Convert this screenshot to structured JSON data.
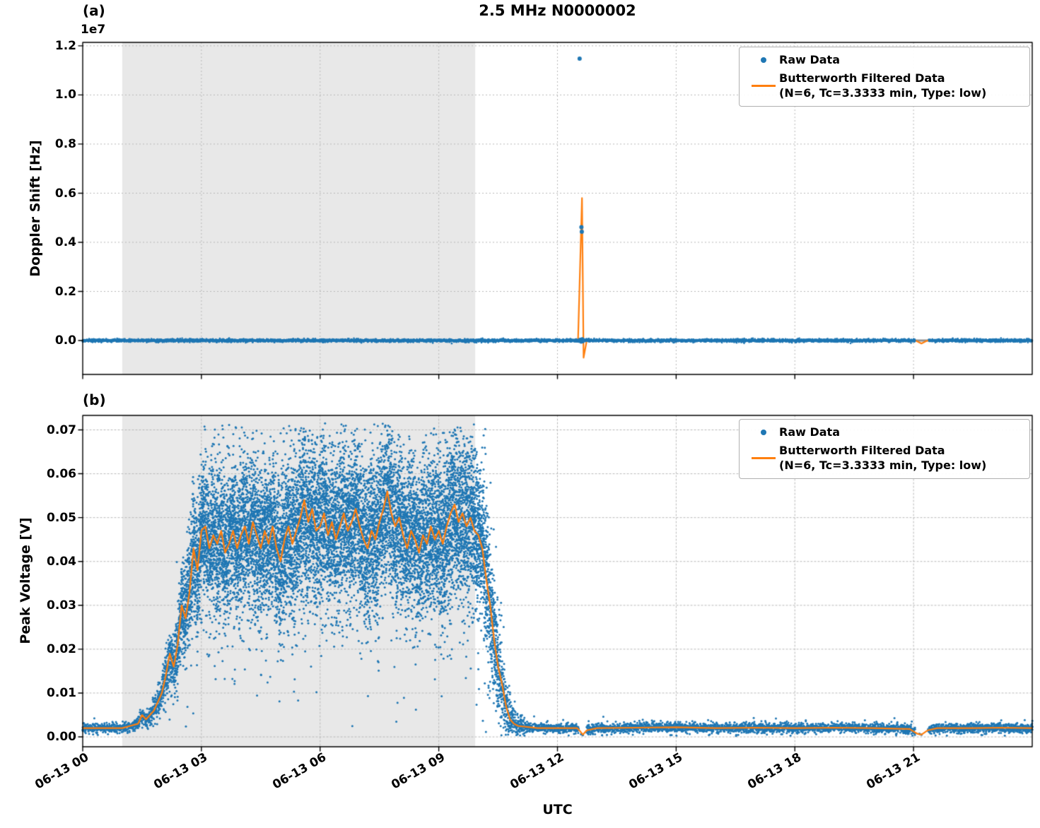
{
  "title": "2.5 MHz N0000002",
  "colors": {
    "raw": "#1f77b4",
    "filtered": "#ff7f0e",
    "shade": "#e8e8e8",
    "grid": "#b8b8b8"
  },
  "chart_data": [
    {
      "type": "scatter",
      "panel_label": "(a)",
      "title": "2.5 MHz N0000002",
      "ylabel": "Doppler Shift [Hz]",
      "offset_text": "1e7",
      "xlabel": "",
      "xlim_hours": [
        0,
        24
      ],
      "ylim": [
        -1380000,
        12140000
      ],
      "yticks": [
        0,
        2000000,
        4000000,
        6000000,
        8000000,
        10000000,
        12000000
      ],
      "ytick_labels": [
        "0.0",
        "0.2",
        "0.4",
        "0.6",
        "0.8",
        "1.0",
        "1.2"
      ],
      "xticks_hours": [
        0,
        3,
        6,
        9,
        12,
        15,
        18,
        21
      ],
      "shaded_hours": [
        1.0,
        9.92
      ],
      "grid": true,
      "legend_position": "upper right",
      "legend_lines": [
        "Raw Data",
        "Butterworth Filtered Data",
        "(N=6, Tc=3.3333 min, Type: low)"
      ],
      "zero_line": {
        "y": 0,
        "color": "#8f8f8f",
        "width": 3
      },
      "raw": {
        "style": "baseline",
        "baseline": 0,
        "jitter": 30000,
        "density": 5,
        "gaps_hours": [
          [
            21.04,
            21.38
          ]
        ],
        "outliers": [
          [
            12.56,
            11480000
          ],
          [
            12.605,
            4620000
          ],
          [
            12.615,
            4430000
          ],
          [
            12.575,
            30000
          ],
          [
            12.6,
            -40000
          ],
          [
            12.625,
            50000
          ],
          [
            12.64,
            0
          ]
        ]
      },
      "filtered": {
        "points": [
          [
            0,
            0
          ],
          [
            12.52,
            0
          ],
          [
            12.62,
            5800000
          ],
          [
            12.66,
            -700000
          ],
          [
            12.74,
            0
          ],
          [
            21.05,
            0
          ],
          [
            21.2,
            -120000
          ],
          [
            21.35,
            0
          ],
          [
            24,
            0
          ]
        ]
      }
    },
    {
      "type": "scatter",
      "panel_label": "(b)",
      "ylabel": "Peak Voltage [V]",
      "xlabel": "UTC",
      "xlim_hours": [
        0,
        24
      ],
      "ylim": [
        -0.00225,
        0.0733
      ],
      "yticks": [
        0,
        0.01,
        0.02,
        0.03,
        0.04,
        0.05,
        0.06,
        0.07
      ],
      "ytick_labels": [
        "0.00",
        "0.01",
        "0.02",
        "0.03",
        "0.04",
        "0.05",
        "0.06",
        "0.07"
      ],
      "xticks_hours": [
        0,
        3,
        6,
        9,
        12,
        15,
        18,
        21
      ],
      "xtick_labels": [
        "06-13 00",
        "06-13 03",
        "06-13 06",
        "06-13 09",
        "06-13 12",
        "06-13 15",
        "06-13 18",
        "06-13 21"
      ],
      "shaded_hours": [
        1.0,
        9.92
      ],
      "grid": true,
      "legend_position": "upper right",
      "legend_lines": [
        "Raw Data",
        "Butterworth Filtered Data",
        "(N=6, Tc=3.3333 min, Type: low)"
      ],
      "raw": {
        "style": "cloud",
        "density_profile": [
          [
            0,
            5
          ],
          [
            1.2,
            5
          ],
          [
            1.8,
            8
          ],
          [
            2.2,
            14
          ],
          [
            2.6,
            22
          ],
          [
            3.0,
            28
          ],
          [
            10.0,
            28
          ],
          [
            10.3,
            22
          ],
          [
            10.6,
            14
          ],
          [
            10.9,
            7
          ],
          [
            11.2,
            5
          ],
          [
            24,
            5
          ]
        ],
        "sigma_profile": [
          [
            0,
            0.00045
          ],
          [
            1.3,
            0.0005
          ],
          [
            1.7,
            0.0009
          ],
          [
            2.0,
            0.0018
          ],
          [
            2.3,
            0.0035
          ],
          [
            2.6,
            0.0055
          ],
          [
            3.0,
            0.0075
          ],
          [
            4.3,
            0.008
          ],
          [
            5.8,
            0.009
          ],
          [
            6.2,
            0.0078
          ],
          [
            7.0,
            0.0085
          ],
          [
            7.8,
            0.009
          ],
          [
            8.2,
            0.0078
          ],
          [
            9.0,
            0.0085
          ],
          [
            9.4,
            0.009
          ],
          [
            10.0,
            0.008
          ],
          [
            10.4,
            0.006
          ],
          [
            10.7,
            0.0035
          ],
          [
            11.0,
            0.0012
          ],
          [
            11.3,
            0.0005
          ],
          [
            24,
            0.0005
          ]
        ],
        "clip": [
          0.0002,
          0.0715
        ],
        "gaps_hours": [
          [
            12.54,
            12.74
          ],
          [
            21.05,
            21.36
          ]
        ],
        "extra_points": [
          [
            12.6,
            0.0006
          ],
          [
            12.64,
            0.0004
          ],
          [
            21.15,
            0.0007
          ],
          [
            21.2,
            0.0005
          ]
        ]
      },
      "filtered": {
        "points": [
          [
            0,
            0.002
          ],
          [
            0.6,
            0.002
          ],
          [
            1.0,
            0.002
          ],
          [
            1.2,
            0.0025
          ],
          [
            1.4,
            0.003
          ],
          [
            1.5,
            0.005
          ],
          [
            1.6,
            0.004
          ],
          [
            1.7,
            0.005
          ],
          [
            1.8,
            0.006
          ],
          [
            1.9,
            0.008
          ],
          [
            2.0,
            0.01
          ],
          [
            2.1,
            0.014
          ],
          [
            2.2,
            0.019
          ],
          [
            2.3,
            0.016
          ],
          [
            2.4,
            0.021
          ],
          [
            2.5,
            0.03
          ],
          [
            2.6,
            0.027
          ],
          [
            2.7,
            0.033
          ],
          [
            2.8,
            0.043
          ],
          [
            2.9,
            0.038
          ],
          [
            3.0,
            0.047
          ],
          [
            3.1,
            0.048
          ],
          [
            3.2,
            0.043
          ],
          [
            3.3,
            0.046
          ],
          [
            3.4,
            0.044
          ],
          [
            3.5,
            0.047
          ],
          [
            3.6,
            0.042
          ],
          [
            3.7,
            0.044
          ],
          [
            3.8,
            0.047
          ],
          [
            3.9,
            0.043
          ],
          [
            4.0,
            0.046
          ],
          [
            4.1,
            0.048
          ],
          [
            4.2,
            0.044
          ],
          [
            4.3,
            0.049
          ],
          [
            4.4,
            0.046
          ],
          [
            4.5,
            0.043
          ],
          [
            4.6,
            0.047
          ],
          [
            4.7,
            0.044
          ],
          [
            4.8,
            0.048
          ],
          [
            4.9,
            0.043
          ],
          [
            5.0,
            0.04
          ],
          [
            5.1,
            0.045
          ],
          [
            5.2,
            0.048
          ],
          [
            5.3,
            0.044
          ],
          [
            5.4,
            0.047
          ],
          [
            5.5,
            0.05
          ],
          [
            5.6,
            0.054
          ],
          [
            5.7,
            0.049
          ],
          [
            5.8,
            0.052
          ],
          [
            5.9,
            0.047
          ],
          [
            6.0,
            0.048
          ],
          [
            6.1,
            0.051
          ],
          [
            6.2,
            0.046
          ],
          [
            6.3,
            0.049
          ],
          [
            6.4,
            0.045
          ],
          [
            6.5,
            0.048
          ],
          [
            6.6,
            0.051
          ],
          [
            6.7,
            0.047
          ],
          [
            6.8,
            0.049
          ],
          [
            6.9,
            0.052
          ],
          [
            7.0,
            0.048
          ],
          [
            7.1,
            0.045
          ],
          [
            7.2,
            0.043
          ],
          [
            7.3,
            0.047
          ],
          [
            7.4,
            0.045
          ],
          [
            7.5,
            0.049
          ],
          [
            7.6,
            0.052
          ],
          [
            7.7,
            0.056
          ],
          [
            7.8,
            0.051
          ],
          [
            7.9,
            0.048
          ],
          [
            8.0,
            0.05
          ],
          [
            8.1,
            0.046
          ],
          [
            8.2,
            0.043
          ],
          [
            8.3,
            0.047
          ],
          [
            8.4,
            0.045
          ],
          [
            8.5,
            0.042
          ],
          [
            8.6,
            0.046
          ],
          [
            8.7,
            0.044
          ],
          [
            8.8,
            0.048
          ],
          [
            8.9,
            0.045
          ],
          [
            9.0,
            0.047
          ],
          [
            9.1,
            0.044
          ],
          [
            9.2,
            0.048
          ],
          [
            9.3,
            0.051
          ],
          [
            9.4,
            0.053
          ],
          [
            9.5,
            0.049
          ],
          [
            9.6,
            0.051
          ],
          [
            9.7,
            0.048
          ],
          [
            9.8,
            0.05
          ],
          [
            9.9,
            0.047
          ],
          [
            10.0,
            0.046
          ],
          [
            10.1,
            0.043
          ],
          [
            10.2,
            0.036
          ],
          [
            10.3,
            0.03
          ],
          [
            10.4,
            0.022
          ],
          [
            10.5,
            0.016
          ],
          [
            10.6,
            0.012
          ],
          [
            10.7,
            0.007
          ],
          [
            10.8,
            0.004
          ],
          [
            10.9,
            0.003
          ],
          [
            11.0,
            0.0025
          ],
          [
            11.5,
            0.002
          ],
          [
            12.0,
            0.002
          ],
          [
            12.5,
            0.002
          ],
          [
            12.58,
            0.0012
          ],
          [
            12.64,
            0.0005
          ],
          [
            12.74,
            0.0015
          ],
          [
            13.0,
            0.002
          ],
          [
            14.0,
            0.0021
          ],
          [
            15.0,
            0.0022
          ],
          [
            16.0,
            0.002
          ],
          [
            17.0,
            0.0021
          ],
          [
            18.0,
            0.002
          ],
          [
            19.0,
            0.0021
          ],
          [
            20.0,
            0.002
          ],
          [
            20.9,
            0.0018
          ],
          [
            21.1,
            0.0007
          ],
          [
            21.2,
            0.0005
          ],
          [
            21.36,
            0.0015
          ],
          [
            21.6,
            0.002
          ],
          [
            22.5,
            0.002
          ],
          [
            23.2,
            0.0021
          ],
          [
            24,
            0.002
          ]
        ]
      }
    }
  ]
}
